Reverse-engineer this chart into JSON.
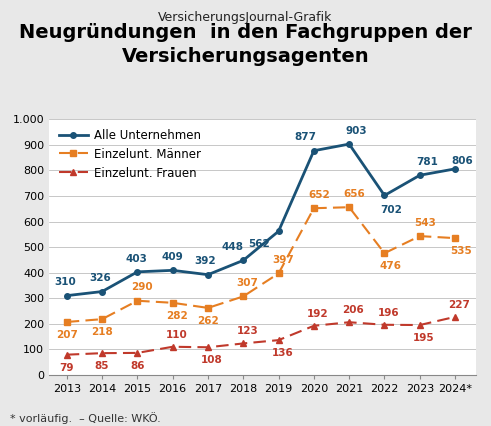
{
  "supertitle": "VersicherungsJournal-Grafik",
  "title": "Neugründungen  in den Fachgruppen der\nVersicherungsagenten",
  "years": [
    2013,
    2014,
    2015,
    2016,
    2017,
    2018,
    2019,
    2020,
    2021,
    2022,
    2023,
    2024
  ],
  "alle": [
    310,
    326,
    403,
    409,
    392,
    448,
    562,
    877,
    903,
    702,
    781,
    806
  ],
  "maenner": [
    207,
    218,
    290,
    282,
    262,
    307,
    397,
    652,
    656,
    476,
    543,
    535
  ],
  "frauen": [
    79,
    85,
    86,
    110,
    108,
    123,
    136,
    192,
    206,
    196,
    195,
    227
  ],
  "alle_color": "#1a5276",
  "maenner_color": "#e67e22",
  "frauen_color": "#c0392b",
  "legend_alle": "Alle Unternehmen",
  "legend_maenner": "Einzelunt. Männer",
  "legend_frauen": "Einzelunt. Frauen",
  "ylim": [
    0,
    1000
  ],
  "yticks": [
    0,
    100,
    200,
    300,
    400,
    500,
    600,
    700,
    800,
    900,
    1000
  ],
  "footer": "* vorläufig.  – Quelle: WKÖ.",
  "bg_color": "#e8e8e8",
  "plot_bg_color": "#ffffff",
  "title_fontsize": 14,
  "supertitle_fontsize": 9,
  "label_fontsize": 7.5,
  "legend_fontsize": 8.5,
  "tick_fontsize": 8,
  "footer_fontsize": 8
}
